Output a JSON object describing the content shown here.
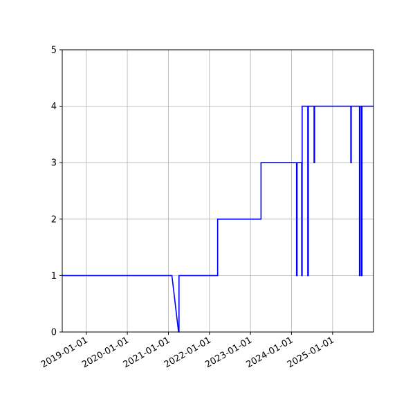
{
  "chart_data": {
    "type": "line",
    "title": "",
    "xlabel": "",
    "ylabel": "",
    "grid": true,
    "line_color": "#0000ff",
    "xlim": [
      "2018-06-01",
      "2025-12-31"
    ],
    "ylim": [
      0,
      5
    ],
    "x_ticks": [
      "2019-01-01",
      "2020-01-01",
      "2021-01-01",
      "2022-01-01",
      "2023-01-01",
      "2024-01-01",
      "2025-01-01"
    ],
    "y_ticks": [
      "0",
      "1",
      "2",
      "3",
      "4",
      "5"
    ],
    "series": [
      {
        "points": [
          [
            "2018-06-01",
            1
          ],
          [
            "2021-02-01",
            1
          ],
          [
            "2021-04-01",
            0
          ],
          [
            "2021-04-05",
            0
          ],
          [
            "2021-04-05",
            1
          ],
          [
            "2022-03-15",
            1
          ],
          [
            "2022-03-15",
            2
          ],
          [
            "2023-04-05",
            2
          ],
          [
            "2023-04-05",
            3
          ],
          [
            "2024-02-15",
            3
          ],
          [
            "2024-02-15",
            1
          ],
          [
            "2024-02-20",
            1
          ],
          [
            "2024-02-20",
            3
          ],
          [
            "2024-04-01",
            3
          ],
          [
            "2024-04-01",
            1
          ],
          [
            "2024-04-05",
            1
          ],
          [
            "2024-04-05",
            4
          ],
          [
            "2024-05-25",
            4
          ],
          [
            "2024-05-25",
            1
          ],
          [
            "2024-05-30",
            1
          ],
          [
            "2024-05-30",
            4
          ],
          [
            "2024-07-20",
            4
          ],
          [
            "2024-07-20",
            3
          ],
          [
            "2024-07-25",
            3
          ],
          [
            "2024-07-25",
            4
          ],
          [
            "2025-06-12",
            4
          ],
          [
            "2025-06-12",
            3
          ],
          [
            "2025-06-16",
            3
          ],
          [
            "2025-06-16",
            4
          ],
          [
            "2025-08-28",
            4
          ],
          [
            "2025-08-28",
            1
          ],
          [
            "2025-09-02",
            1
          ],
          [
            "2025-09-02",
            4
          ],
          [
            "2025-09-15",
            4
          ],
          [
            "2025-09-15",
            1
          ],
          [
            "2025-09-20",
            1
          ],
          [
            "2025-09-20",
            4
          ],
          [
            "2025-12-31",
            4
          ]
        ]
      }
    ]
  }
}
